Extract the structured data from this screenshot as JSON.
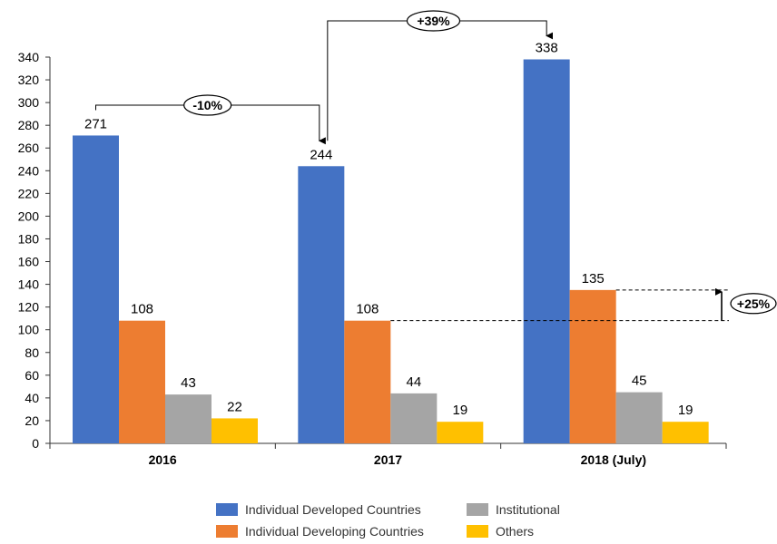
{
  "chart_data": {
    "type": "bar",
    "categories": [
      "2016",
      "2017",
      "2018 (July)"
    ],
    "series": [
      {
        "name": "Individual Developed Countries",
        "color": "#4472C4",
        "values": [
          271,
          244,
          338
        ]
      },
      {
        "name": "Individual Developing Countries",
        "color": "#ED7D31",
        "values": [
          108,
          108,
          135
        ]
      },
      {
        "name": "Institutional",
        "color": "#A5A5A5",
        "values": [
          43,
          44,
          45
        ]
      },
      {
        "name": "Others",
        "color": "#FFC000",
        "values": [
          22,
          19,
          19
        ]
      }
    ],
    "ylim": [
      0,
      340
    ],
    "yticks": [
      0,
      20,
      40,
      60,
      80,
      100,
      120,
      140,
      160,
      180,
      200,
      220,
      240,
      260,
      280,
      300,
      320,
      340
    ],
    "grid": false,
    "legend_position": "bottom",
    "annotations": [
      {
        "label": "-10%",
        "from": "2016",
        "to": "2017",
        "series": "Individual Developed Countries"
      },
      {
        "label": "+39%",
        "from": "2017",
        "to": "2018 (July)",
        "series": "Individual Developed Countries"
      },
      {
        "label": "+25%",
        "from": "2017",
        "to": "2018 (July)",
        "series": "Individual Developing Countries"
      }
    ]
  }
}
